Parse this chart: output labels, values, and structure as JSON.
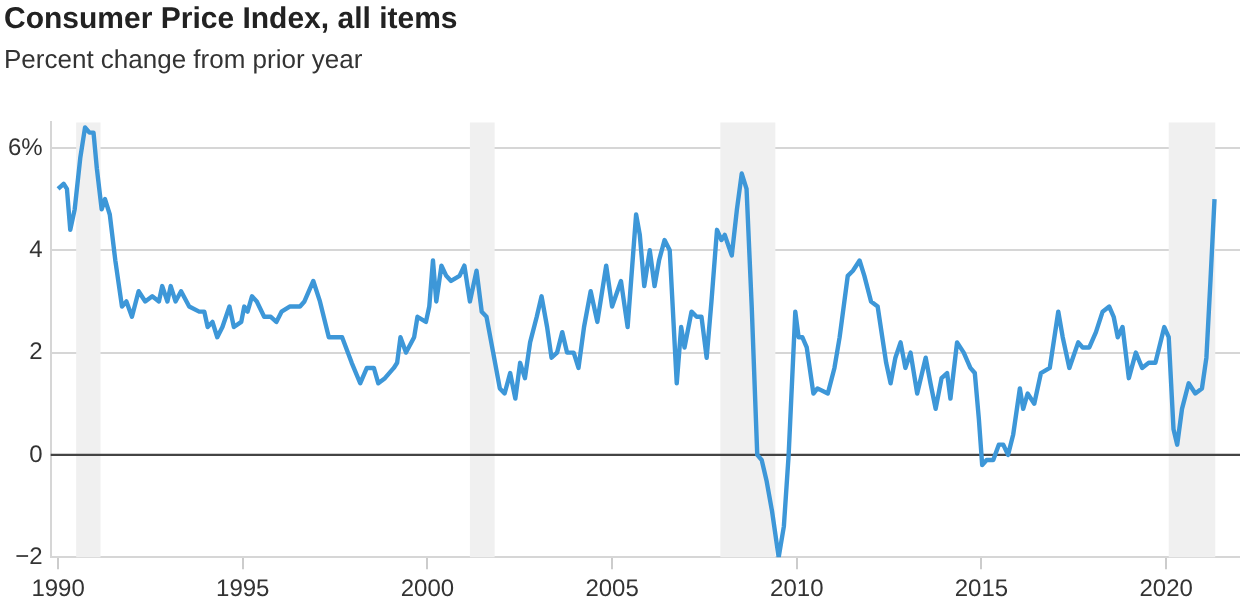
{
  "chart_data": {
    "type": "line",
    "title": "Consumer Price Index, all items",
    "subtitle": "Percent change from prior year",
    "xlim": [
      1989.8,
      2022
    ],
    "xticks": [
      1990,
      1995,
      2000,
      2005,
      2010,
      2015,
      2020
    ],
    "ylim": [
      -2,
      6.5
    ],
    "yticks": [
      {
        "value": -2,
        "label": "−2"
      },
      0,
      2,
      4,
      {
        "value": 6,
        "label": "6%"
      }
    ],
    "grid": "y",
    "legend": false,
    "marker": "none",
    "line_style": "solid",
    "ref_lines": [
      {
        "axis": "y",
        "value": 0,
        "label": null,
        "color": "#444444"
      }
    ],
    "bands": [
      {
        "axis": "x",
        "from": 1990.49,
        "to": 1991.15,
        "label": null,
        "color": "#f0f0f0"
      },
      {
        "axis": "x",
        "from": 2001.15,
        "to": 2001.82,
        "label": null,
        "color": "#f0f0f0"
      },
      {
        "axis": "x",
        "from": 2007.93,
        "to": 2009.42,
        "label": null,
        "color": "#f0f0f0"
      },
      {
        "axis": "x",
        "from": 2020.07,
        "to": 2021.33,
        "label": null,
        "color": "#f0f0f0"
      }
    ],
    "series": [
      {
        "color": "#3d97d8",
        "x": [
          1990.0,
          1990.15,
          1990.24,
          1990.33,
          1990.45,
          1990.6,
          1990.73,
          1990.85,
          1990.96,
          1991.05,
          1991.18,
          1991.27,
          1991.4,
          1991.55,
          1991.73,
          1991.85,
          1992.0,
          1992.18,
          1992.36,
          1992.55,
          1992.73,
          1992.82,
          1992.96,
          1993.05,
          1993.18,
          1993.33,
          1993.55,
          1993.82,
          1993.96,
          1994.05,
          1994.18,
          1994.31,
          1994.45,
          1994.64,
          1994.76,
          1994.96,
          1995.04,
          1995.13,
          1995.25,
          1995.38,
          1995.58,
          1995.76,
          1995.91,
          1996.05,
          1996.27,
          1996.55,
          1996.67,
          1996.91,
          1997.09,
          1997.33,
          1997.55,
          1997.69,
          1997.95,
          1998.18,
          1998.36,
          1998.55,
          1998.67,
          1998.85,
          1999.09,
          1999.18,
          1999.27,
          1999.42,
          1999.64,
          1999.73,
          1999.96,
          2000.05,
          2000.15,
          2000.24,
          2000.38,
          2000.51,
          2000.64,
          2000.87,
          2001.0,
          2001.15,
          2001.33,
          2001.47,
          2001.6,
          2001.78,
          2001.96,
          2002.09,
          2002.24,
          2002.38,
          2002.51,
          2002.64,
          2002.78,
          2002.96,
          2003.09,
          2003.24,
          2003.36,
          2003.51,
          2003.65,
          2003.78,
          2003.96,
          2004.09,
          2004.24,
          2004.42,
          2004.6,
          2004.84,
          2005.0,
          2005.24,
          2005.42,
          2005.65,
          2005.75,
          2005.87,
          2006.02,
          2006.15,
          2006.27,
          2006.42,
          2006.56,
          2006.75,
          2006.87,
          2006.96,
          2007.15,
          2007.29,
          2007.42,
          2007.56,
          2007.69,
          2007.84,
          2007.96,
          2008.05,
          2008.24,
          2008.38,
          2008.51,
          2008.64,
          2008.78,
          2008.93,
          2009.05,
          2009.18,
          2009.33,
          2009.51,
          2009.65,
          2009.78,
          2009.96,
          2010.05,
          2010.15,
          2010.27,
          2010.45,
          2010.56,
          2010.84,
          2011.02,
          2011.16,
          2011.38,
          2011.52,
          2011.7,
          2011.83,
          2012.01,
          2012.19,
          2012.42,
          2012.54,
          2012.67,
          2012.81,
          2012.94,
          2013.08,
          2013.26,
          2013.49,
          2013.62,
          2013.76,
          2013.92,
          2014.07,
          2014.16,
          2014.34,
          2014.52,
          2014.7,
          2014.82,
          2014.93,
          2015.02,
          2015.14,
          2015.32,
          2015.47,
          2015.59,
          2015.72,
          2015.86,
          2016.04,
          2016.13,
          2016.25,
          2016.43,
          2016.61,
          2016.85,
          2017.08,
          2017.2,
          2017.38,
          2017.62,
          2017.74,
          2017.92,
          2018.1,
          2018.28,
          2018.46,
          2018.58,
          2018.69,
          2018.82,
          2018.99,
          2019.18,
          2019.35,
          2019.53,
          2019.71,
          2019.95,
          2020.07,
          2020.2,
          2020.3,
          2020.43,
          2020.61,
          2020.79,
          2020.97,
          2021.09,
          2021.2,
          2021.31
        ],
        "values": [
          5.2,
          5.3,
          5.2,
          4.4,
          4.8,
          5.8,
          6.4,
          6.3,
          6.3,
          5.6,
          4.8,
          5.0,
          4.7,
          3.8,
          2.9,
          3.0,
          2.7,
          3.2,
          3.0,
          3.1,
          3.0,
          3.3,
          3.0,
          3.3,
          3.0,
          3.2,
          2.9,
          2.8,
          2.8,
          2.5,
          2.6,
          2.3,
          2.5,
          2.9,
          2.5,
          2.6,
          2.9,
          2.8,
          3.1,
          3.0,
          2.7,
          2.7,
          2.6,
          2.8,
          2.9,
          2.9,
          3.0,
          3.4,
          3.0,
          2.3,
          2.3,
          2.3,
          1.8,
          1.4,
          1.7,
          1.7,
          1.4,
          1.5,
          1.7,
          1.8,
          2.3,
          2.0,
          2.3,
          2.7,
          2.6,
          2.9,
          3.8,
          3.0,
          3.7,
          3.5,
          3.4,
          3.5,
          3.7,
          3.0,
          3.6,
          2.8,
          2.7,
          2.0,
          1.3,
          1.2,
          1.6,
          1.1,
          1.8,
          1.5,
          2.2,
          2.7,
          3.1,
          2.5,
          1.9,
          2.0,
          2.4,
          2.0,
          2.0,
          1.7,
          2.5,
          3.2,
          2.6,
          3.7,
          2.9,
          3.4,
          2.5,
          4.7,
          4.3,
          3.3,
          4.0,
          3.3,
          3.8,
          4.2,
          4.0,
          1.4,
          2.5,
          2.1,
          2.8,
          2.7,
          2.7,
          1.9,
          3.0,
          4.4,
          4.2,
          4.3,
          3.9,
          4.8,
          5.5,
          5.2,
          2.9,
          0.0,
          -0.1,
          -0.5,
          -1.1,
          -2.0,
          -1.4,
          0.0,
          2.8,
          2.3,
          2.3,
          2.1,
          1.2,
          1.3,
          1.2,
          1.7,
          2.3,
          3.5,
          3.6,
          3.8,
          3.5,
          3.0,
          2.9,
          1.8,
          1.4,
          1.9,
          2.2,
          1.7,
          2.0,
          1.2,
          1.9,
          1.4,
          0.9,
          1.5,
          1.6,
          1.1,
          2.2,
          2.0,
          1.7,
          1.6,
          0.7,
          -0.2,
          -0.1,
          -0.1,
          0.2,
          0.2,
          0.0,
          0.4,
          1.3,
          0.9,
          1.2,
          1.0,
          1.6,
          1.7,
          2.8,
          2.3,
          1.7,
          2.2,
          2.1,
          2.1,
          2.4,
          2.8,
          2.9,
          2.7,
          2.3,
          2.5,
          1.5,
          2.0,
          1.7,
          1.8,
          1.8,
          2.5,
          2.3,
          0.5,
          0.2,
          0.9,
          1.4,
          1.2,
          1.3,
          1.9,
          3.4,
          5.0
        ]
      }
    ]
  }
}
